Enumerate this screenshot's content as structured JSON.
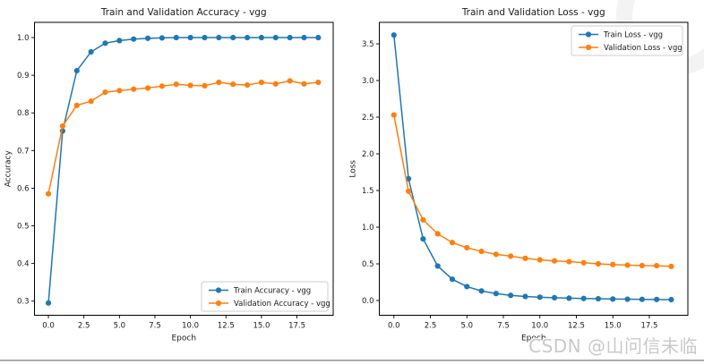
{
  "watermark": "CSDN @山问信未临",
  "colors": {
    "train": "#1f77b4",
    "validation": "#ff7f0e",
    "text": "#1a1a1a",
    "spine": "#000000",
    "legend_border": "#cccccc",
    "watermark_gray": "#c9c9c9",
    "divider_gray": "#ababab"
  },
  "chart_data": [
    {
      "type": "line",
      "title": "Train and Validation Accuracy - vgg",
      "xlabel": "Epoch",
      "ylabel": "Accuracy",
      "x": [
        0,
        1,
        2,
        3,
        4,
        5,
        6,
        7,
        8,
        9,
        10,
        11,
        12,
        13,
        14,
        15,
        16,
        17,
        18,
        19
      ],
      "series": [
        {
          "name": "Train Accuracy - vgg",
          "color_key": "train",
          "values": [
            0.295,
            0.752,
            0.912,
            0.962,
            0.985,
            0.992,
            0.996,
            0.998,
            0.999,
            1.0,
            1.0,
            1.0,
            1.0,
            1.0,
            1.0,
            1.0,
            1.0,
            1.0,
            1.0,
            1.0
          ]
        },
        {
          "name": "Validation Accuracy - vgg",
          "color_key": "validation",
          "values": [
            0.585,
            0.765,
            0.82,
            0.831,
            0.855,
            0.859,
            0.863,
            0.866,
            0.871,
            0.876,
            0.873,
            0.872,
            0.881,
            0.876,
            0.874,
            0.881,
            0.877,
            0.885,
            0.877,
            0.881
          ]
        }
      ],
      "xlim": [
        -0.98,
        20.05
      ],
      "ylim": [
        0.2625,
        1.0404
      ],
      "xticks": [
        0.0,
        2.5,
        5.0,
        7.5,
        10.0,
        12.5,
        15.0,
        17.5
      ],
      "yticks": [
        0.3,
        0.4,
        0.5,
        0.6,
        0.7,
        0.8,
        0.9,
        1.0
      ],
      "legend_position": "lower right",
      "grid": false
    },
    {
      "type": "line",
      "title": "Train and Validation Loss - vgg",
      "xlabel": "Epoch",
      "ylabel": "Loss",
      "x": [
        0,
        1,
        2,
        3,
        4,
        5,
        6,
        7,
        8,
        9,
        10,
        11,
        12,
        13,
        14,
        15,
        16,
        17,
        18,
        19
      ],
      "series": [
        {
          "name": "Train Loss - vgg",
          "color_key": "train",
          "values": [
            3.62,
            1.66,
            0.84,
            0.47,
            0.29,
            0.19,
            0.13,
            0.095,
            0.07,
            0.055,
            0.045,
            0.038,
            0.032,
            0.028,
            0.024,
            0.02,
            0.018,
            0.016,
            0.014,
            0.012
          ]
        },
        {
          "name": "Validation Loss - vgg",
          "color_key": "validation",
          "values": [
            2.53,
            1.49,
            1.1,
            0.91,
            0.79,
            0.72,
            0.67,
            0.63,
            0.605,
            0.575,
            0.555,
            0.54,
            0.53,
            0.515,
            0.5,
            0.49,
            0.483,
            0.476,
            0.475,
            0.465
          ]
        }
      ],
      "xlim": [
        -1.0,
        20.14
      ],
      "ylim": [
        -0.201,
        3.793
      ],
      "xticks": [
        0.0,
        2.5,
        5.0,
        7.5,
        10.0,
        12.5,
        15.0,
        17.5
      ],
      "yticks": [
        0.0,
        0.5,
        1.0,
        1.5,
        2.0,
        2.5,
        3.0,
        3.5
      ],
      "legend_position": "upper right",
      "grid": false
    }
  ]
}
